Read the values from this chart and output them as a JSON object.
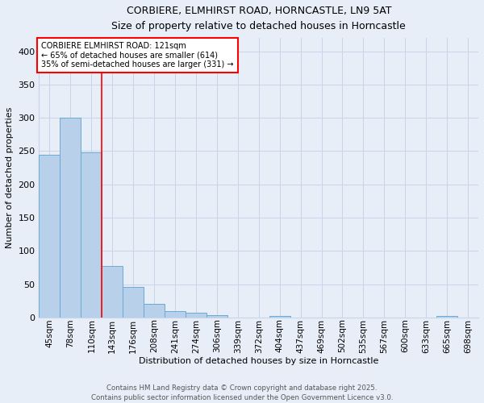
{
  "title_line1": "CORBIERE, ELMHIRST ROAD, HORNCASTLE, LN9 5AT",
  "title_line2": "Size of property relative to detached houses in Horncastle",
  "xlabel": "Distribution of detached houses by size in Horncastle",
  "ylabel": "Number of detached properties",
  "categories": [
    "45sqm",
    "78sqm",
    "110sqm",
    "143sqm",
    "176sqm",
    "208sqm",
    "241sqm",
    "274sqm",
    "306sqm",
    "339sqm",
    "372sqm",
    "404sqm",
    "437sqm",
    "469sqm",
    "502sqm",
    "535sqm",
    "567sqm",
    "600sqm",
    "633sqm",
    "665sqm",
    "698sqm"
  ],
  "values": [
    245,
    300,
    248,
    77,
    46,
    21,
    10,
    7,
    4,
    0,
    0,
    3,
    0,
    0,
    0,
    0,
    0,
    0,
    0,
    3,
    0
  ],
  "bar_color": "#b8d0ea",
  "bar_edge_color": "#6aaad4",
  "red_line_index": 2.5,
  "annotation_box_text_line1": "CORBIERE ELMHIRST ROAD: 121sqm",
  "annotation_box_text_line2": "← 65% of detached houses are smaller (614)",
  "annotation_box_text_line3": "35% of semi-detached houses are larger (331) →",
  "footer_line1": "Contains HM Land Registry data © Crown copyright and database right 2025.",
  "footer_line2": "Contains public sector information licensed under the Open Government Licence v3.0.",
  "ylim_max": 420,
  "yticks": [
    0,
    50,
    100,
    150,
    200,
    250,
    300,
    350,
    400
  ],
  "background_color": "#e8eef8",
  "grid_color": "#c8d4e8",
  "title_fontsize": 9,
  "subtitle_fontsize": 8.5,
  "xlabel_fontsize": 8,
  "ylabel_fontsize": 8,
  "tick_fontsize": 7.5,
  "footer_fontsize": 6.2,
  "annot_fontsize": 7.0
}
